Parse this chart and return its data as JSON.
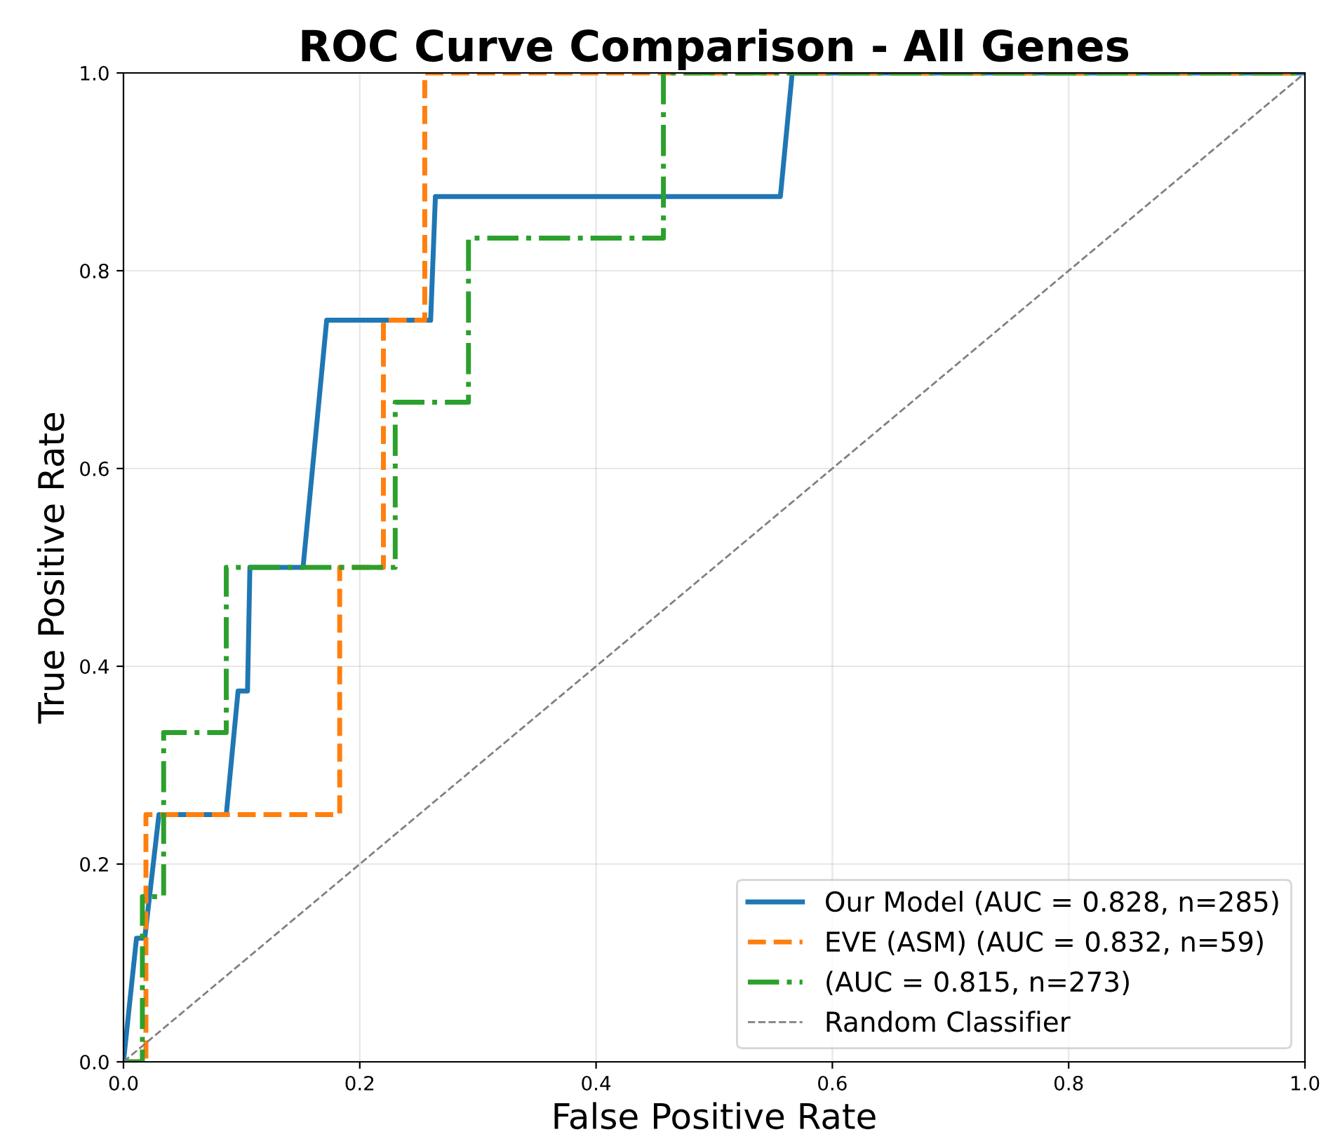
{
  "chart_data": {
    "type": "line",
    "title": "ROC Curve Comparison - All Genes",
    "xlabel": "False Positive Rate",
    "ylabel": "True Positive Rate",
    "series": [
      {
        "name": "Our Model (AUC = 0.828, n=285)",
        "color": "#1f77b4",
        "line_style": "solid",
        "x": [
          0,
          0.011,
          0.018,
          0.03,
          0.087,
          0.097,
          0.105,
          0.107,
          0.152,
          0.172,
          0.26,
          0.264,
          0.556,
          0.566,
          1
        ],
        "values": [
          0,
          0.125,
          0.125,
          0.25,
          0.25,
          0.375,
          0.375,
          0.5,
          0.5,
          0.75,
          0.75,
          0.875,
          0.875,
          1,
          1
        ]
      },
      {
        "name": "EVE (ASM) (AUC = 0.832, n=59)",
        "color": "#ff7f0e",
        "line_style": "dashed",
        "x": [
          0,
          0.019,
          0.019,
          0.183,
          0.183,
          0.22,
          0.22,
          0.255,
          0.255,
          1
        ],
        "values": [
          0,
          0,
          0.25,
          0.25,
          0.5,
          0.5,
          0.75,
          0.75,
          1,
          1
        ]
      },
      {
        "name": "(AUC = 0.815, n=273)",
        "color": "#2ca02c",
        "line_style": "dashdot",
        "x": [
          0,
          0.016,
          0.016,
          0.034,
          0.034,
          0.087,
          0.087,
          0.23,
          0.23,
          0.292,
          0.292,
          0.457,
          0.457,
          1
        ],
        "values": [
          0,
          0,
          0.167,
          0.167,
          0.333,
          0.333,
          0.5,
          0.5,
          0.667,
          0.667,
          0.833,
          0.833,
          1,
          1
        ]
      },
      {
        "name": "Random Classifier",
        "color": "#808080",
        "line_style": "dashed",
        "x": [
          0,
          1
        ],
        "values": [
          0,
          1
        ]
      }
    ],
    "xlim": [
      0,
      1
    ],
    "ylim": [
      0,
      1
    ],
    "xticks": [
      {
        "value": 0,
        "label": "0.0"
      },
      0.2,
      0.4,
      0.6,
      0.8,
      {
        "value": 1,
        "label": "1.0"
      }
    ],
    "yticks": [
      {
        "value": 0,
        "label": "0.0"
      },
      0.2,
      0.4,
      0.6,
      0.8,
      {
        "value": 1,
        "label": "1.0"
      }
    ],
    "grid": true,
    "legend": "bottom right"
  }
}
